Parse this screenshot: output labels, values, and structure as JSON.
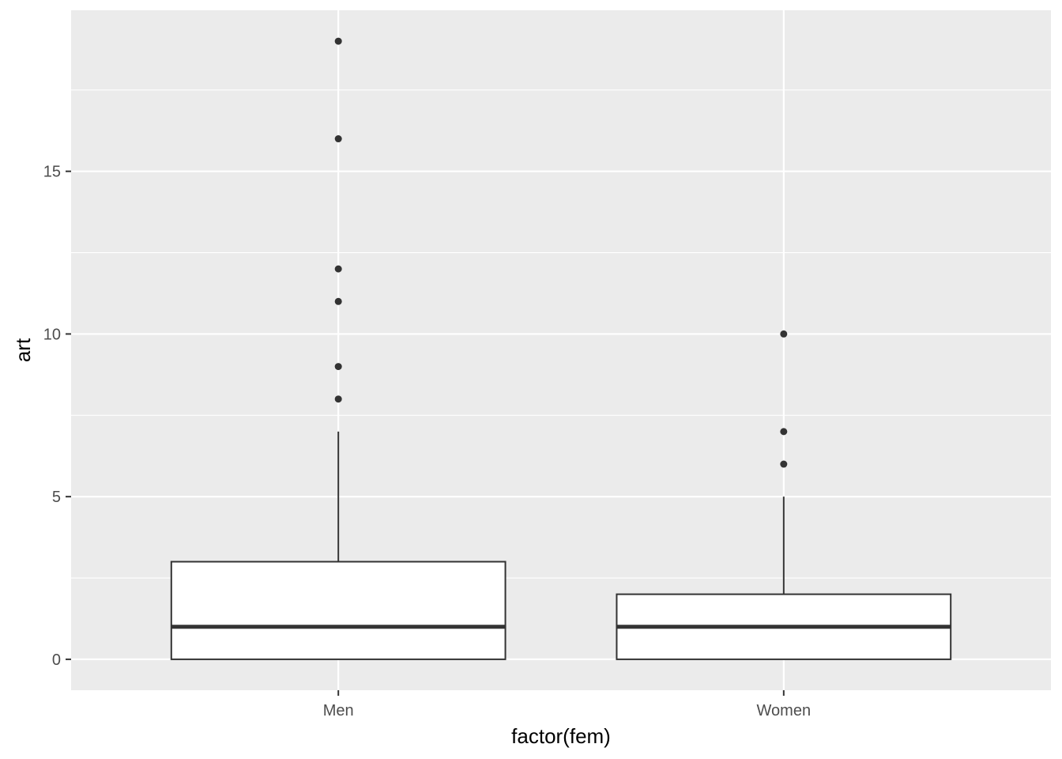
{
  "chart_data": {
    "type": "boxplot",
    "xlabel": "factor(fem)",
    "ylabel": "art",
    "categories": [
      "Men",
      "Women"
    ],
    "ylim": [
      -0.95,
      19.95
    ],
    "y_ticks": [
      0,
      5,
      10,
      15
    ],
    "y_minor_ticks": [
      2.5,
      7.5,
      12.5,
      17.5
    ],
    "grid": true,
    "boxes": [
      {
        "category": "Men",
        "min": 0,
        "q1": 0,
        "median": 1,
        "q3": 3,
        "max": 7,
        "outliers": [
          8,
          9,
          11,
          12,
          16,
          19
        ]
      },
      {
        "category": "Women",
        "min": 0,
        "q1": 0,
        "median": 1,
        "q3": 2,
        "max": 5,
        "outliers": [
          6,
          7,
          10
        ]
      }
    ],
    "colors": {
      "panel_background": "#EBEBEB",
      "grid": "#FFFFFF",
      "box_fill": "#FFFFFF",
      "box_line": "#333333",
      "outlier": "#333333",
      "tick_text": "#4D4D4D"
    }
  }
}
